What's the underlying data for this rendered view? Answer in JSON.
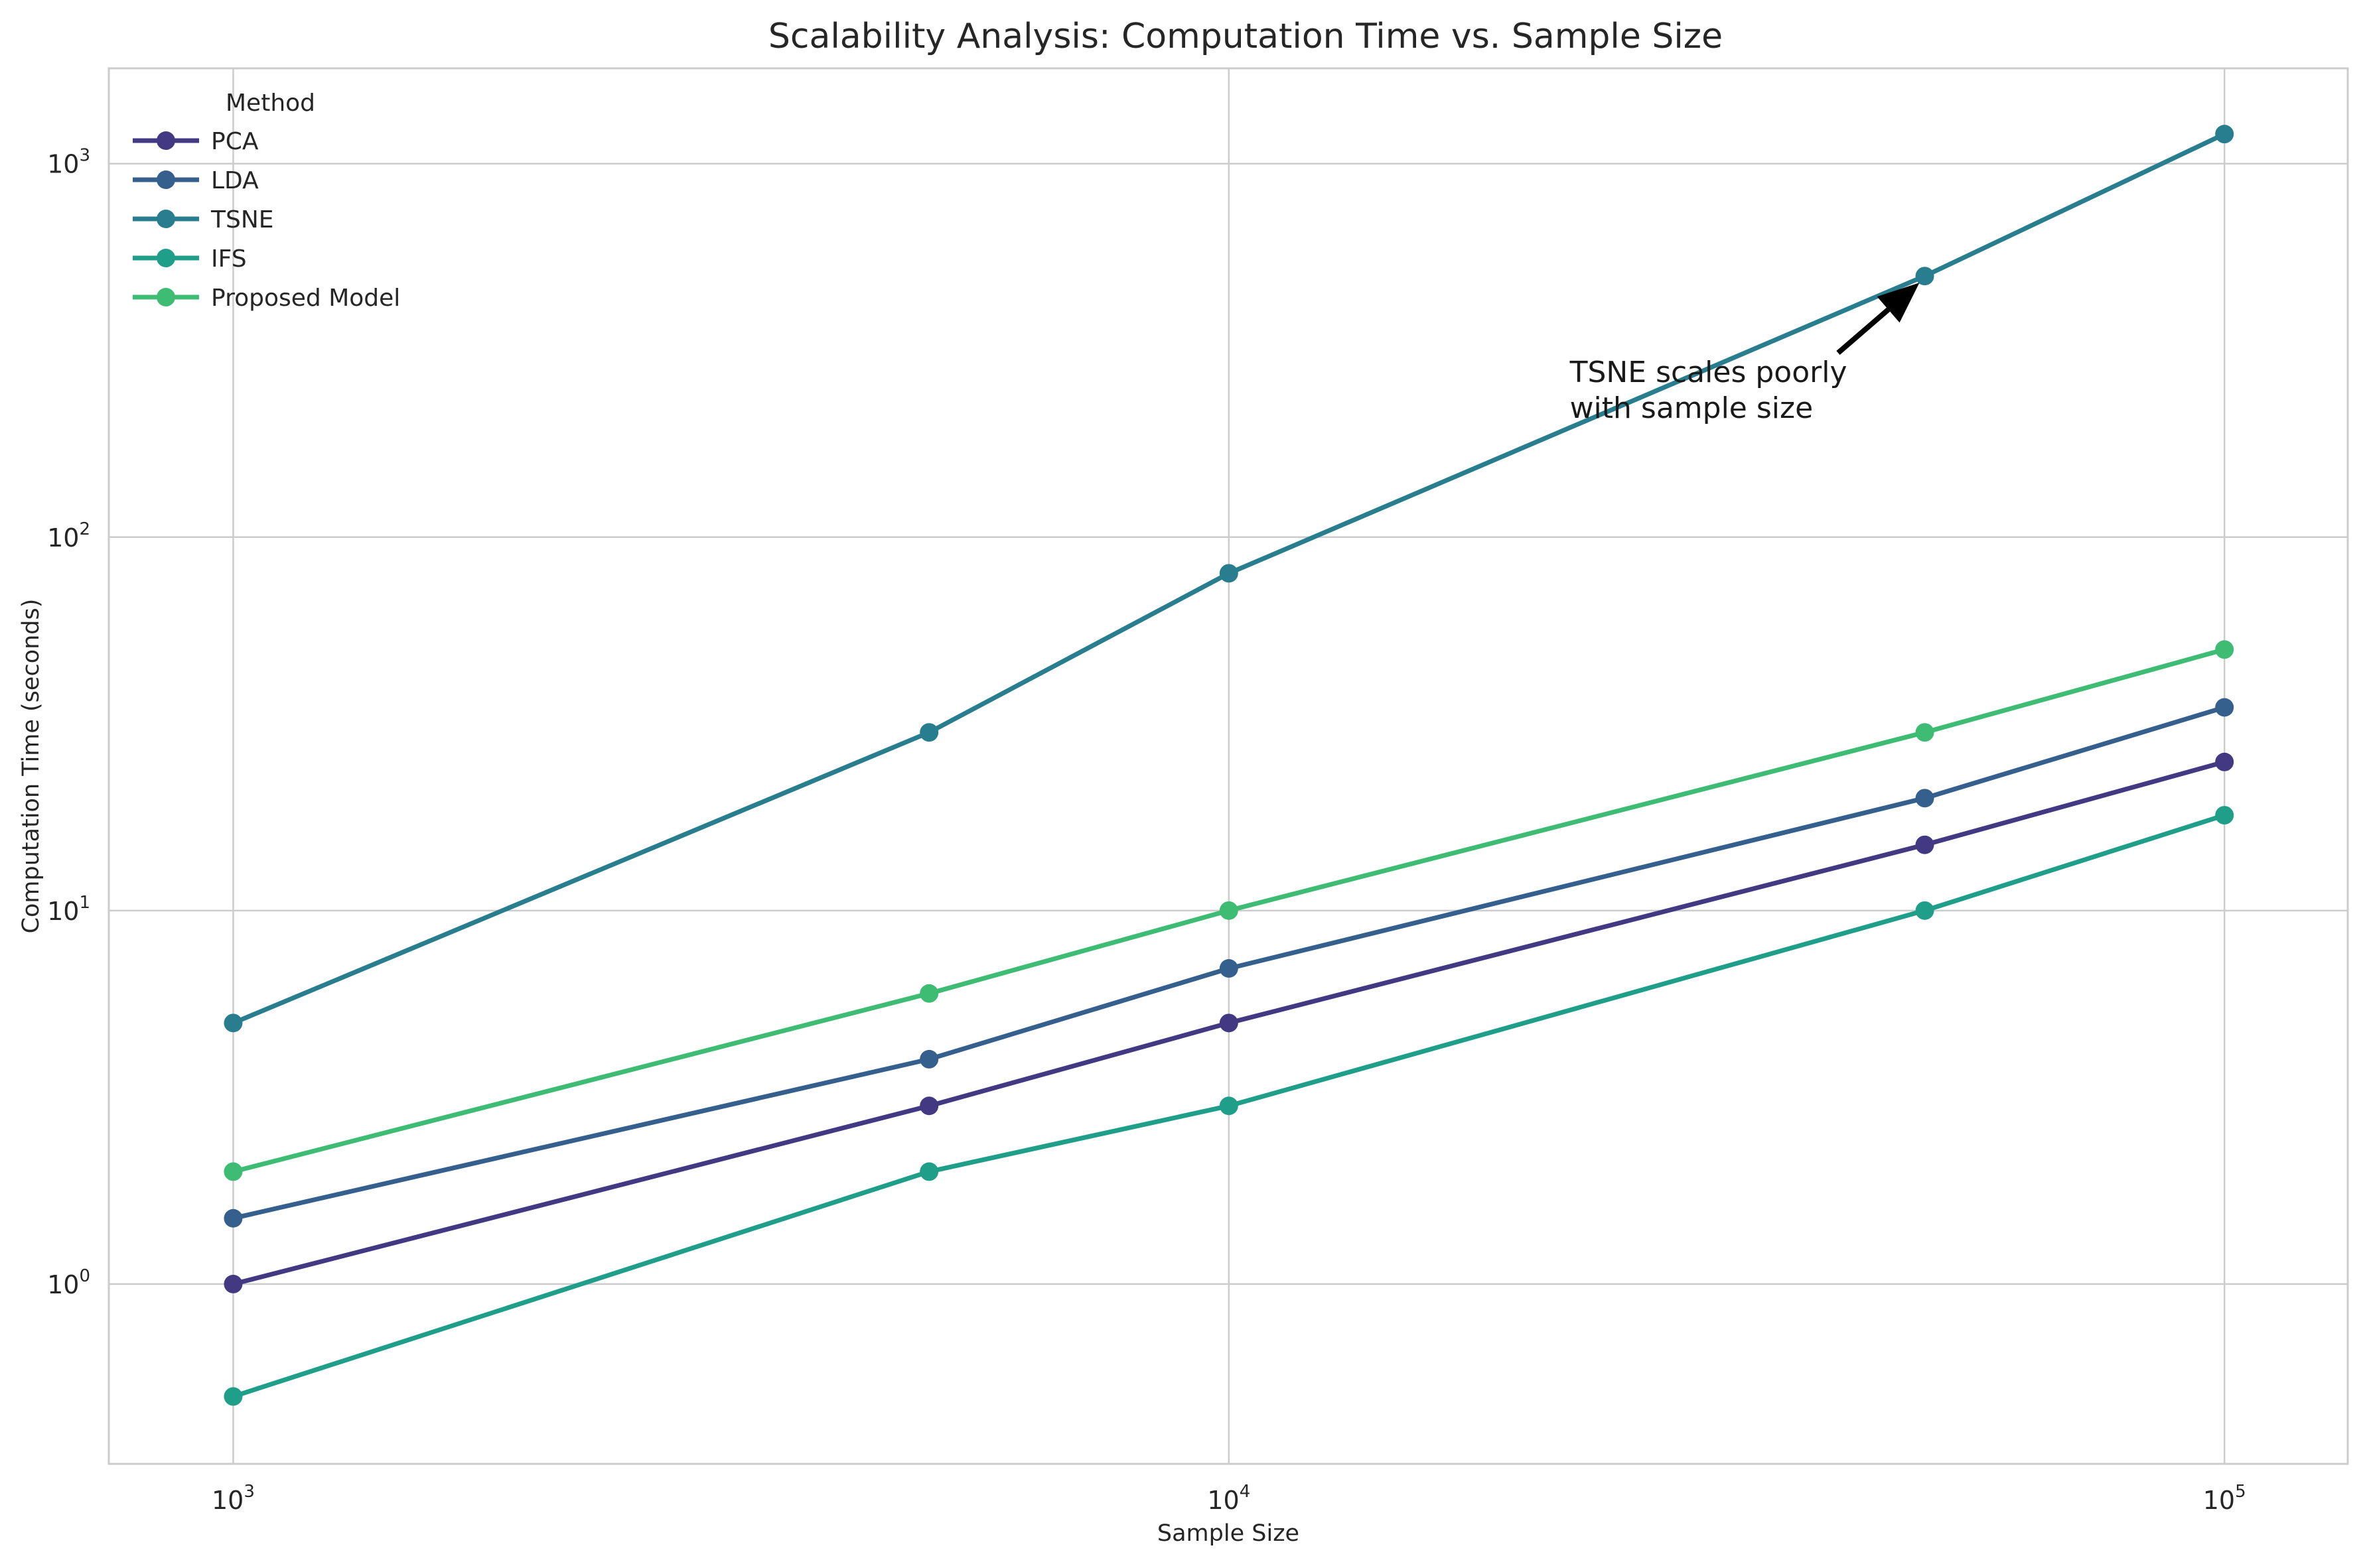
{
  "chart_data": {
    "type": "line",
    "title": "Scalability Analysis: Computation Time vs. Sample Size",
    "xlabel": "Sample Size",
    "ylabel": "Computation Time (seconds)",
    "xscale": "log",
    "yscale": "log",
    "xlim": [
      750,
      133000
    ],
    "ylim": [
      0.33,
      1800
    ],
    "x": [
      1000,
      5000,
      10000,
      50000,
      100000
    ],
    "x_ticks": [
      {
        "value": 1000,
        "base": "10",
        "exp": "3"
      },
      {
        "value": 10000,
        "base": "10",
        "exp": "4"
      },
      {
        "value": 100000,
        "base": "10",
        "exp": "5"
      }
    ],
    "y_ticks": [
      {
        "value": 1,
        "base": "10",
        "exp": "0"
      },
      {
        "value": 10,
        "base": "10",
        "exp": "1"
      },
      {
        "value": 100,
        "base": "10",
        "exp": "2"
      },
      {
        "value": 1000,
        "base": "10",
        "exp": "3"
      }
    ],
    "grid": true,
    "legend": {
      "title": "Method",
      "position": "top-left"
    },
    "series": [
      {
        "name": "PCA",
        "color": "#433983",
        "values": [
          1,
          3,
          5,
          15,
          25
        ]
      },
      {
        "name": "LDA",
        "color": "#355f8d",
        "values": [
          1.5,
          4,
          7,
          20,
          35
        ]
      },
      {
        "name": "TSNE",
        "color": "#287d8e",
        "values": [
          5,
          30,
          80,
          500,
          1200
        ]
      },
      {
        "name": "IFS",
        "color": "#1f9e89",
        "values": [
          0.5,
          2,
          3,
          10,
          18
        ]
      },
      {
        "name": "Proposed Model",
        "color": "#3fbc73",
        "values": [
          2,
          6,
          10,
          30,
          50
        ]
      }
    ],
    "annotations": [
      {
        "lines": [
          "TSNE scales poorly",
          "with sample size"
        ],
        "target_x": 50000,
        "target_y": 500,
        "text_x": 22000,
        "text_y": 230
      }
    ]
  }
}
